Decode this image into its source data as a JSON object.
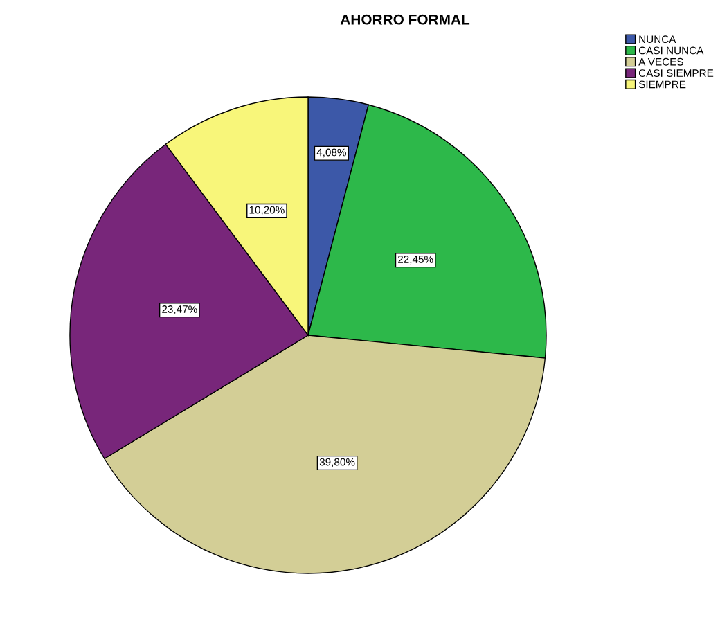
{
  "chart_data": {
    "type": "pie",
    "title": "AHORRO FORMAL",
    "categories": [
      "NUNCA",
      "CASI NUNCA",
      "A VECES",
      "CASI SIEMPRE",
      "SIEMPRE"
    ],
    "values": [
      4.08,
      22.45,
      39.8,
      23.47,
      10.2
    ],
    "value_labels": [
      "4,08%",
      "22,45%",
      "39,80%",
      "23,47%",
      "10,20%"
    ],
    "colors": [
      "#3c58a8",
      "#2db84a",
      "#d3ce96",
      "#78267a",
      "#f8f67a"
    ],
    "legend": "top right"
  }
}
